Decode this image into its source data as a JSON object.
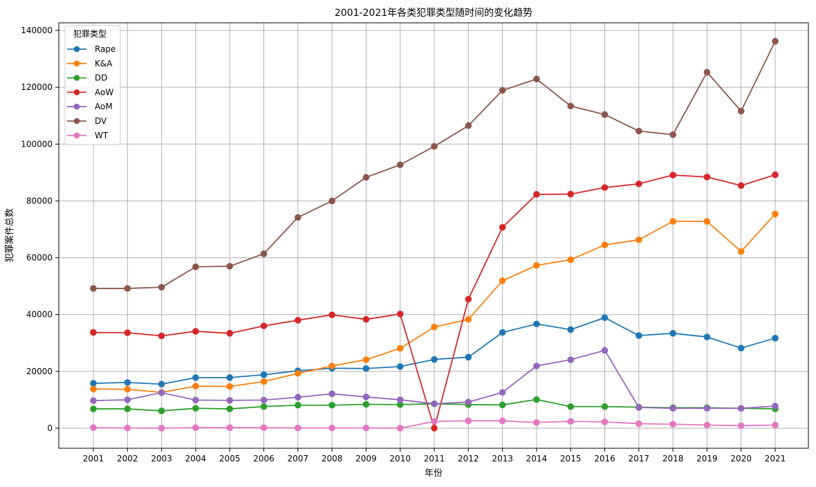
{
  "chart_data": {
    "type": "line",
    "title": "2001-2021年各类犯罪类型随时间的变化趋势",
    "xlabel": "年份",
    "ylabel": "犯罪案件总数",
    "x": [
      2001,
      2002,
      2003,
      2004,
      2005,
      2006,
      2007,
      2008,
      2009,
      2010,
      2011,
      2012,
      2013,
      2014,
      2015,
      2016,
      2017,
      2018,
      2019,
      2020,
      2021
    ],
    "ylim": [
      -6000,
      141000
    ],
    "yticks": [
      0,
      20000,
      40000,
      60000,
      80000,
      100000,
      120000,
      140000
    ],
    "grid": true,
    "legend": {
      "title": "犯罪类型",
      "placement": "upper-left"
    },
    "series": [
      {
        "name": "Rape",
        "color": "#1f77b4",
        "values": [
          15800,
          16100,
          15500,
          17800,
          17800,
          18800,
          20200,
          21100,
          21000,
          21700,
          24200,
          25000,
          33700,
          36700,
          34700,
          38900,
          32600,
          33400,
          32100,
          28200,
          31700
        ]
      },
      {
        "name": "K&A",
        "color": "#ff7f0e",
        "values": [
          13800,
          13700,
          12600,
          14800,
          14700,
          16400,
          19300,
          21900,
          24100,
          28100,
          35600,
          38300,
          51900,
          57300,
          59300,
          64500,
          66300,
          72800,
          72800,
          62200,
          75400
        ]
      },
      {
        "name": "DD",
        "color": "#2ca02c",
        "values": [
          6800,
          6800,
          6100,
          7000,
          6800,
          7600,
          8100,
          8100,
          8400,
          8300,
          8600,
          8300,
          8200,
          10100,
          7600,
          7600,
          7400,
          7200,
          7200,
          7000,
          6800
        ]
      },
      {
        "name": "AoW",
        "color": "#d62728",
        "values": [
          33700,
          33600,
          32500,
          34100,
          33400,
          36000,
          38000,
          39900,
          38300,
          40200,
          0,
          45400,
          70700,
          82300,
          82400,
          84700,
          86000,
          89100,
          88400,
          85400,
          89200
        ]
      },
      {
        "name": "AoM",
        "color": "#9467bd",
        "values": [
          9700,
          10000,
          12500,
          9900,
          9800,
          9900,
          10900,
          12100,
          11000,
          10000,
          8600,
          9200,
          12600,
          21900,
          24100,
          27400,
          7300,
          7000,
          7000,
          7000,
          7800
        ]
      },
      {
        "name": "DV",
        "color": "#8c564b",
        "values": [
          49200,
          49200,
          49600,
          56800,
          57000,
          61400,
          74200,
          80000,
          88300,
          92700,
          99200,
          106500,
          118900,
          122900,
          113400,
          110400,
          104600,
          103300,
          125300,
          111600,
          136200
        ]
      },
      {
        "name": "WT",
        "color": "#e377c2",
        "values": [
          200,
          100,
          0,
          200,
          200,
          200,
          100,
          100,
          100,
          0,
          2400,
          2600,
          2600,
          2000,
          2400,
          2200,
          1600,
          1400,
          1100,
          900,
          1100
        ]
      }
    ]
  }
}
